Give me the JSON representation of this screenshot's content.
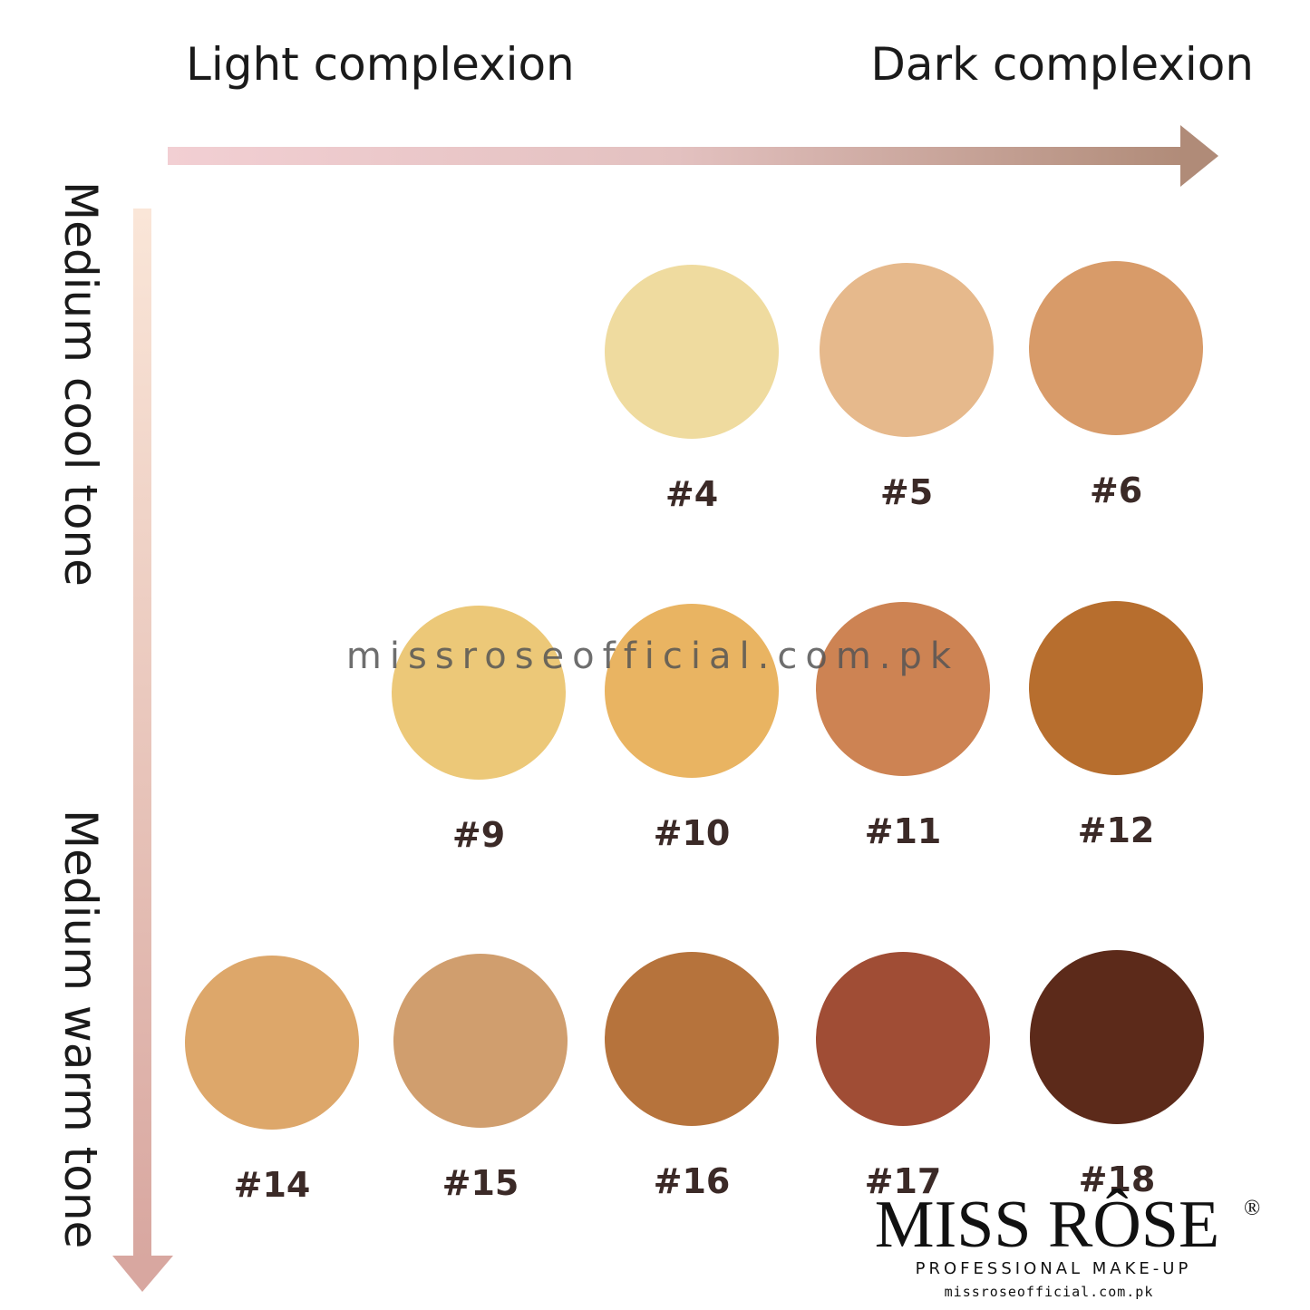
{
  "axes": {
    "left_label": "Light complexion",
    "right_label": "Dark complexion",
    "top_label": "Medium cool tone",
    "bottom_label": "Medium warm tone"
  },
  "swatches": [
    {
      "label": "#4",
      "color": "#efdb9f"
    },
    {
      "label": "#5",
      "color": "#e6b98c"
    },
    {
      "label": "#6",
      "color": "#d89b69"
    },
    {
      "label": "#9",
      "color": "#ecc878"
    },
    {
      "label": "#10",
      "color": "#e9b462"
    },
    {
      "label": "#11",
      "color": "#cd8353"
    },
    {
      "label": "#12",
      "color": "#b76e2e"
    },
    {
      "label": "#14",
      "color": "#dda76a"
    },
    {
      "label": "#15",
      "color": "#d09e6e"
    },
    {
      "label": "#16",
      "color": "#b6733c"
    },
    {
      "label": "#17",
      "color": "#a04d35"
    },
    {
      "label": "#18",
      "color": "#5c2a1a"
    }
  ],
  "watermark": "missroseofficial.com.pk",
  "logo": {
    "brand": "MISS RÔSE",
    "mark": "®",
    "tagline": "PROFESSIONAL MAKE-UP",
    "url": "missroseofficial.com.pk"
  }
}
